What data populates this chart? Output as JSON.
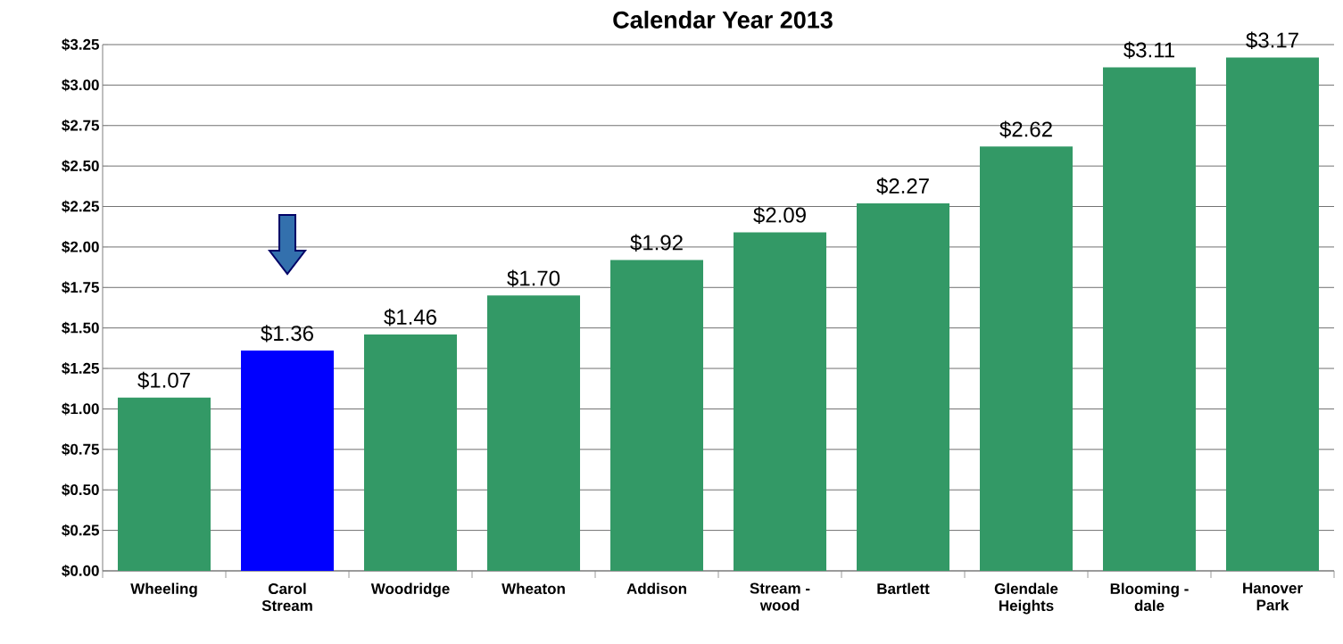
{
  "chart_data": {
    "type": "bar",
    "title": "Calendar Year 2013",
    "categories": [
      "Wheeling",
      "Carol Stream",
      "Woodridge",
      "Wheaton",
      "Addison",
      "Stream - wood",
      "Bartlett",
      "Glendale Heights",
      "Blooming - dale",
      "Hanover Park"
    ],
    "values": [
      1.07,
      1.36,
      1.46,
      1.7,
      1.92,
      2.09,
      2.27,
      2.62,
      3.11,
      3.17
    ],
    "value_labels": [
      "$1.07",
      "$1.36",
      "$1.46",
      "$1.70",
      "$1.92",
      "$2.09",
      "$2.27",
      "$2.62",
      "$3.11",
      "$3.17"
    ],
    "colors": [
      "#339966",
      "#0000ff",
      "#339966",
      "#339966",
      "#339966",
      "#339966",
      "#339966",
      "#339966",
      "#339966",
      "#339966"
    ],
    "ylim": [
      0,
      3.25
    ],
    "yticks": [
      {
        "value": 0,
        "label": "$0.00"
      },
      {
        "value": 0.25,
        "label": "$0.25"
      },
      {
        "value": 0.5,
        "label": "$0.50"
      },
      {
        "value": 0.75,
        "label": "$0.75"
      },
      {
        "value": 1,
        "label": "$1.00"
      },
      {
        "value": 1.25,
        "label": "$1.25"
      },
      {
        "value": 1.5,
        "label": "$1.50"
      },
      {
        "value": 1.75,
        "label": "$1.75"
      },
      {
        "value": 2,
        "label": "$2.00"
      },
      {
        "value": 2.25,
        "label": "$2.25"
      },
      {
        "value": 2.5,
        "label": "$2.50"
      },
      {
        "value": 2.75,
        "label": "$2.75"
      },
      {
        "value": 3,
        "label": "$3.00"
      },
      {
        "value": 3.25,
        "label": "$3.25"
      }
    ],
    "grid": "y"
  }
}
